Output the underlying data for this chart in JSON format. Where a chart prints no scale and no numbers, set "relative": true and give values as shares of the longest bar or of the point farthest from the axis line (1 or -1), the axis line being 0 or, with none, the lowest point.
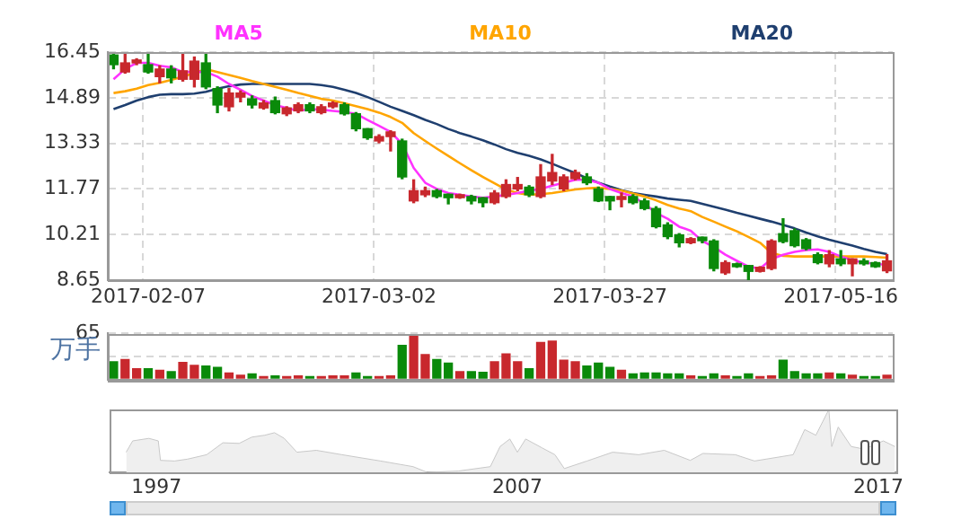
{
  "chart_data": [
    {
      "type": "candlestick",
      "legend": "top",
      "grid": true,
      "categories": [
        null,
        null,
        null,
        "2017-02-07",
        null,
        null,
        null,
        null,
        null,
        null,
        null,
        null,
        null,
        null,
        null,
        null,
        null,
        null,
        null,
        null,
        null,
        null,
        null,
        "2017-03-02",
        null,
        null,
        null,
        null,
        null,
        null,
        null,
        null,
        null,
        null,
        null,
        null,
        null,
        null,
        null,
        null,
        null,
        null,
        null,
        "2017-03-27",
        null,
        null,
        null,
        null,
        null,
        null,
        null,
        null,
        null,
        null,
        null,
        null,
        null,
        null,
        null,
        null,
        null,
        null,
        null,
        "2017-05-16",
        null,
        null,
        null,
        null
      ],
      "ohlc": [
        [
          16.35,
          16.43,
          15.88,
          16.02
        ],
        [
          15.77,
          16.45,
          15.73,
          16.08
        ],
        [
          16.08,
          16.22,
          16.02,
          16.18
        ],
        [
          16.02,
          16.39,
          15.73,
          15.77
        ],
        [
          15.61,
          15.98,
          15.4,
          15.87
        ],
        [
          15.87,
          15.98,
          15.4,
          15.57
        ],
        [
          15.52,
          16.45,
          15.46,
          15.81
        ],
        [
          15.52,
          16.28,
          15.26,
          16.14
        ],
        [
          16.08,
          16.45,
          15.2,
          15.26
        ],
        [
          15.2,
          15.26,
          14.38,
          14.64
        ],
        [
          14.58,
          15.2,
          14.44,
          15.05
        ],
        [
          14.91,
          15.12,
          14.75,
          15.05
        ],
        [
          14.85,
          14.95,
          14.54,
          14.64
        ],
        [
          14.54,
          14.79,
          14.5,
          14.71
        ],
        [
          14.79,
          14.91,
          14.34,
          14.38
        ],
        [
          14.34,
          14.58,
          14.28,
          14.54
        ],
        [
          14.44,
          14.71,
          14.38,
          14.65
        ],
        [
          14.65,
          14.71,
          14.38,
          14.44
        ],
        [
          14.38,
          14.65,
          14.34,
          14.58
        ],
        [
          14.58,
          14.75,
          14.54,
          14.71
        ],
        [
          14.65,
          14.71,
          14.3,
          14.34
        ],
        [
          14.34,
          14.38,
          13.76,
          13.83
        ],
        [
          13.83,
          13.83,
          13.47,
          13.52
        ],
        [
          13.41,
          13.62,
          13.35,
          13.56
        ],
        [
          13.56,
          13.76,
          13.07,
          13.72
        ],
        [
          13.41,
          13.47,
          12.12,
          12.18
        ],
        [
          11.36,
          12.08,
          11.3,
          11.71
        ],
        [
          11.57,
          11.83,
          11.51,
          11.71
        ],
        [
          11.71,
          11.75,
          11.47,
          11.51
        ],
        [
          11.59,
          11.59,
          11.26,
          11.47
        ],
        [
          11.47,
          11.59,
          11.45,
          11.57
        ],
        [
          11.51,
          11.55,
          11.26,
          11.36
        ],
        [
          11.47,
          11.47,
          11.16,
          11.3
        ],
        [
          11.3,
          11.71,
          11.26,
          11.63
        ],
        [
          11.51,
          12.08,
          11.47,
          11.92
        ],
        [
          11.77,
          12.16,
          11.71,
          11.92
        ],
        [
          11.83,
          11.88,
          11.51,
          11.57
        ],
        [
          11.51,
          12.6,
          11.47,
          12.18
        ],
        [
          12.04,
          12.95,
          11.92,
          12.33
        ],
        [
          11.77,
          12.25,
          11.71,
          12.18
        ],
        [
          12.12,
          12.41,
          12.08,
          12.33
        ],
        [
          12.18,
          12.29,
          11.92,
          11.98
        ],
        [
          11.77,
          11.83,
          11.34,
          11.36
        ],
        [
          11.51,
          11.51,
          11.06,
          11.36
        ],
        [
          11.41,
          11.63,
          11.16,
          11.51
        ],
        [
          11.51,
          11.57,
          11.26,
          11.3
        ],
        [
          11.36,
          11.43,
          11.06,
          11.1
        ],
        [
          11.1,
          11.16,
          10.44,
          10.48
        ],
        [
          10.54,
          10.61,
          10.07,
          10.14
        ],
        [
          10.2,
          10.24,
          9.79,
          9.93
        ],
        [
          9.93,
          10.1,
          9.9,
          10.07
        ],
        [
          10.12,
          10.12,
          9.93,
          10.0
        ],
        [
          9.99,
          10.03,
          8.97,
          9.05
        ],
        [
          8.9,
          9.31,
          8.85,
          9.25
        ],
        [
          9.21,
          9.23,
          9.09,
          9.11
        ],
        [
          9.15,
          9.15,
          8.65,
          8.95
        ],
        [
          8.95,
          9.11,
          8.93,
          9.09
        ],
        [
          9.05,
          10.03,
          9.01,
          9.99
        ],
        [
          10.24,
          10.75,
          9.93,
          9.97
        ],
        [
          10.34,
          10.4,
          9.79,
          9.83
        ],
        [
          10.03,
          10.07,
          9.69,
          9.73
        ],
        [
          9.52,
          9.58,
          9.21,
          9.25
        ],
        [
          9.21,
          9.66,
          9.11,
          9.52
        ],
        [
          9.38,
          9.66,
          9.15,
          9.21
        ],
        [
          9.21,
          9.38,
          8.8,
          9.38
        ],
        [
          9.31,
          9.38,
          9.17,
          9.21
        ],
        [
          9.25,
          9.27,
          9.09,
          9.11
        ],
        [
          8.97,
          9.52,
          8.91,
          9.31
        ]
      ],
      "colors": [
        "#0a8a0a",
        "#c8282d",
        "#c8282d",
        "#0a8a0a",
        "#c8282d",
        "#0a8a0a",
        "#c8282d",
        "#c8282d",
        "#0a8a0a",
        "#0a8a0a",
        "#c8282d",
        "#c8282d",
        "#0a8a0a",
        "#c8282d",
        "#0a8a0a",
        "#c8282d",
        "#c8282d",
        "#0a8a0a",
        "#c8282d",
        "#c8282d",
        "#0a8a0a",
        "#0a8a0a",
        "#0a8a0a",
        "#c8282d",
        "#c8282d",
        "#0a8a0a",
        "#c8282d",
        "#c8282d",
        "#0a8a0a",
        "#0a8a0a",
        "#c8282d",
        "#0a8a0a",
        "#0a8a0a",
        "#c8282d",
        "#c8282d",
        "#c8282d",
        "#0a8a0a",
        "#c8282d",
        "#c8282d",
        "#c8282d",
        "#c8282d",
        "#0a8a0a",
        "#0a8a0a",
        "#0a8a0a",
        "#c8282d",
        "#0a8a0a",
        "#0a8a0a",
        "#0a8a0a",
        "#0a8a0a",
        "#0a8a0a",
        "#c8282d",
        "#0a8a0a",
        "#0a8a0a",
        "#c8282d",
        "#0a8a0a",
        "#0a8a0a",
        "#c8282d",
        "#c8282d",
        "#0a8a0a",
        "#0a8a0a",
        "#0a8a0a",
        "#0a8a0a",
        "#c8282d",
        "#0a8a0a",
        "#c8282d",
        "#0a8a0a",
        "#0a8a0a",
        "#c8282d"
      ],
      "series": [
        {
          "name": "MA5",
          "type": "line",
          "color": "#ff33ff",
          "values": [
            15.52,
            15.87,
            16.08,
            16.08,
            15.98,
            15.93,
            15.77,
            15.77,
            15.77,
            15.61,
            15.36,
            15.16,
            14.95,
            14.79,
            14.64,
            14.54,
            14.44,
            14.5,
            14.48,
            14.44,
            14.4,
            14.34,
            14.13,
            13.93,
            13.72,
            13.31,
            12.49,
            11.98,
            11.77,
            11.63,
            11.57,
            11.51,
            11.47,
            11.51,
            11.57,
            11.63,
            11.71,
            11.77,
            11.88,
            11.98,
            12.08,
            12.08,
            11.98,
            11.77,
            11.63,
            11.51,
            11.26,
            10.95,
            10.75,
            10.48,
            10.34,
            9.99,
            9.78,
            9.52,
            9.31,
            9.11,
            9.05,
            9.37,
            9.52,
            9.62,
            9.68,
            9.7,
            9.62,
            9.46,
            9.33,
            9.25,
            9.21,
            9.17
          ]
        },
        {
          "name": "MA10",
          "type": "line",
          "color": "#ffa500",
          "values": [
            15.05,
            15.11,
            15.2,
            15.32,
            15.4,
            15.5,
            15.61,
            15.73,
            15.87,
            15.77,
            15.67,
            15.57,
            15.46,
            15.36,
            15.26,
            15.16,
            15.05,
            14.95,
            14.85,
            14.79,
            14.7,
            14.6,
            14.5,
            14.38,
            14.23,
            14.03,
            13.68,
            13.41,
            13.15,
            12.9,
            12.65,
            12.41,
            12.18,
            11.96,
            11.75,
            11.63,
            11.57,
            11.59,
            11.63,
            11.69,
            11.75,
            11.79,
            11.81,
            11.77,
            11.71,
            11.61,
            11.51,
            11.38,
            11.22,
            11.1,
            11.01,
            10.81,
            10.65,
            10.48,
            10.32,
            10.13,
            9.93,
            9.58,
            9.48,
            9.46,
            9.46,
            9.46,
            9.46,
            9.46,
            9.46,
            9.46,
            9.44,
            9.42
          ]
        },
        {
          "name": "MA20",
          "type": "line",
          "color": "#1f3f6f",
          "values": [
            14.5,
            14.64,
            14.79,
            14.91,
            14.99,
            15.01,
            15.01,
            15.03,
            15.09,
            15.2,
            15.28,
            15.34,
            15.36,
            15.36,
            15.36,
            15.36,
            15.36,
            15.36,
            15.32,
            15.26,
            15.16,
            15.05,
            14.91,
            14.75,
            14.58,
            14.44,
            14.29,
            14.13,
            13.99,
            13.82,
            13.68,
            13.56,
            13.43,
            13.29,
            13.13,
            13.0,
            12.9,
            12.78,
            12.63,
            12.47,
            12.31,
            12.14,
            11.98,
            11.85,
            11.73,
            11.63,
            11.57,
            11.51,
            11.44,
            11.4,
            11.36,
            11.26,
            11.16,
            11.06,
            10.95,
            10.85,
            10.75,
            10.65,
            10.54,
            10.42,
            10.28,
            10.15,
            10.03,
            9.93,
            9.83,
            9.72,
            9.62,
            9.54
          ]
        }
      ],
      "ylim": [
        8.65,
        16.45
      ],
      "yticks": [
        8.65,
        10.21,
        11.77,
        13.33,
        14.89,
        16.45
      ]
    },
    {
      "type": "bar",
      "grid": true,
      "ylabel": "万手",
      "categories": [
        null,
        null,
        null,
        null,
        null,
        null,
        null,
        null,
        null,
        null,
        null,
        null,
        null,
        null,
        null,
        null,
        null,
        null,
        null,
        null,
        null,
        null,
        null,
        null,
        null,
        null,
        null,
        null,
        null,
        null,
        null,
        null,
        null,
        null,
        null,
        null,
        null,
        null,
        null,
        null,
        null,
        null,
        null,
        null,
        null,
        null,
        null,
        null,
        null,
        null,
        null,
        null,
        null,
        null,
        null,
        null,
        null,
        null,
        null,
        null,
        null,
        null,
        null,
        null,
        null,
        null,
        null,
        null
      ],
      "values": [
        26,
        29,
        16,
        16,
        14,
        12,
        25,
        21,
        20,
        18,
        10,
        7,
        9,
        4,
        6,
        4,
        6,
        4,
        4,
        6,
        6,
        10,
        4,
        1,
        6,
        49,
        63,
        36,
        29,
        24,
        12,
        12,
        11,
        26,
        37,
        26,
        16,
        53,
        55,
        28,
        26,
        20,
        24,
        18,
        14,
        9,
        10,
        10,
        9,
        9,
        6,
        2,
        9,
        6,
        2,
        9,
        2,
        6,
        28,
        12,
        9,
        9,
        10,
        9,
        7,
        3,
        3,
        7
      ],
      "colors": [
        "#0a8a0a",
        "#c8282d",
        "#c8282d",
        "#0a8a0a",
        "#c8282d",
        "#0a8a0a",
        "#c8282d",
        "#c8282d",
        "#0a8a0a",
        "#0a8a0a",
        "#c8282d",
        "#c8282d",
        "#0a8a0a",
        "#c8282d",
        "#0a8a0a",
        "#c8282d",
        "#c8282d",
        "#0a8a0a",
        "#c8282d",
        "#c8282d",
        "#c8282d",
        "#0a8a0a",
        "#0a8a0a",
        "#c8282d",
        "#c8282d",
        "#0a8a0a",
        "#c8282d",
        "#c8282d",
        "#0a8a0a",
        "#0a8a0a",
        "#c8282d",
        "#0a8a0a",
        "#0a8a0a",
        "#c8282d",
        "#c8282d",
        "#c8282d",
        "#0a8a0a",
        "#c8282d",
        "#c8282d",
        "#c8282d",
        "#c8282d",
        "#0a8a0a",
        "#0a8a0a",
        "#0a8a0a",
        "#c8282d",
        "#0a8a0a",
        "#0a8a0a",
        "#0a8a0a",
        "#0a8a0a",
        "#0a8a0a",
        "#c8282d",
        "#0a8a0a",
        "#0a8a0a",
        "#c8282d",
        "#0a8a0a",
        "#0a8a0a",
        "#c8282d",
        "#c8282d",
        "#0a8a0a",
        "#0a8a0a",
        "#0a8a0a",
        "#0a8a0a",
        "#c8282d",
        "#0a8a0a",
        "#c8282d",
        "#0a8a0a",
        "#0a8a0a",
        "#c8282d"
      ],
      "ylim": [
        0,
        65
      ],
      "yticks": [
        {
          "value": 0,
          "label": null
        },
        {
          "value": 32.5,
          "label": null
        },
        65
      ]
    },
    {
      "type": "area",
      "relative": true,
      "color": "#c8c8c8",
      "x": [
        1996.16,
        1996.34,
        1996.79,
        1997.05,
        1997.11,
        1997.5,
        1997.86,
        1998.39,
        1998.84,
        1999.29,
        1999.64,
        2000.0,
        2000.27,
        2000.54,
        2000.89,
        2001.43,
        2002.14,
        2003.21,
        2004.11,
        2004.5,
        2005.36,
        2006.25,
        2006.52,
        2006.79,
        2007.0,
        2007.23,
        2007.68,
        2008.04,
        2008.3,
        2008.93,
        2009.64,
        2010.36,
        2011.07,
        2011.79,
        2012.14,
        2013.04,
        2013.57,
        2014.64,
        2014.96,
        2015.27,
        2015.63,
        2015.71,
        2015.89,
        2016.25,
        2016.61,
        2017.14,
        2017.46
      ],
      "values": [
        0.32,
        0.5,
        0.54,
        0.5,
        0.19,
        0.18,
        0.21,
        0.28,
        0.47,
        0.46,
        0.56,
        0.59,
        0.63,
        0.54,
        0.32,
        0.35,
        0.28,
        0.18,
        0.09,
        0,
        0.02,
        0.09,
        0.41,
        0.53,
        0.32,
        0.53,
        0.39,
        0.28,
        0.06,
        0.18,
        0.32,
        0.28,
        0.35,
        0.19,
        0.3,
        0.28,
        0.18,
        0.28,
        0.68,
        0.59,
        1,
        0.41,
        0.72,
        0.41,
        0.37,
        0.5,
        0.41
      ],
      "xlim": [
        1995.7,
        2017.5
      ],
      "xticks": [
        1997,
        2007,
        2017
      ]
    }
  ]
}
